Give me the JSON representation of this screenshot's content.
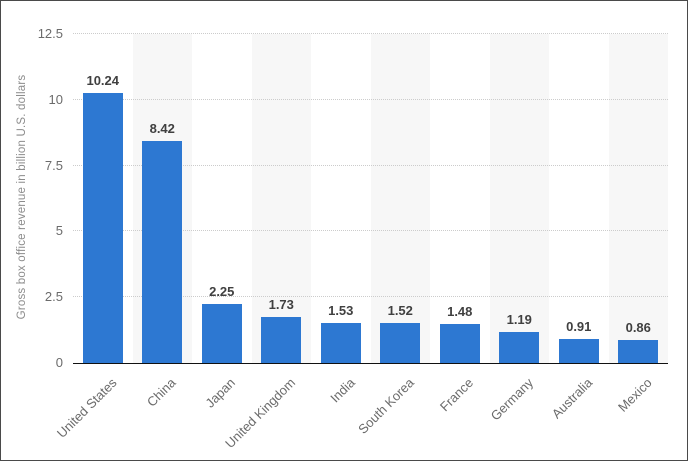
{
  "chart_data": {
    "type": "bar",
    "categories": [
      "United States",
      "China",
      "Japan",
      "United Kingdom",
      "India",
      "South Korea",
      "France",
      "Germany",
      "Australia",
      "Mexico"
    ],
    "values": [
      10.24,
      8.42,
      2.25,
      1.73,
      1.53,
      1.52,
      1.48,
      1.19,
      0.91,
      0.86
    ],
    "value_labels": [
      "10.24",
      "8.42",
      "2.25",
      "1.73",
      "1.53",
      "1.52",
      "1.48",
      "1.19",
      "0.91",
      "0.86"
    ],
    "title": "",
    "xlabel": "",
    "ylabel": "Gross box office revenue in billion U.S. dollars",
    "ylim": [
      0,
      12.5
    ],
    "yticks": [
      0,
      2.5,
      5,
      7.5,
      10,
      12.5
    ],
    "ytick_labels": [
      "0",
      "2.5",
      "5",
      "7.5",
      "10",
      "12.5"
    ],
    "grid": "horizontal-dotted",
    "legend_position": "none",
    "shaded_column_indices": [
      1,
      3,
      5,
      7,
      9
    ]
  },
  "colors": {
    "bar": "#2d78d2",
    "value_label": "#404040",
    "axis_tick_label": "#6b6b6b",
    "y_axis_title": "#8c8c8c",
    "gridline": "#cccccc",
    "baseline": "#111111",
    "column_band": "#f7f7f7",
    "background": "#ffffff",
    "frame_border": "#4a4a4a"
  }
}
